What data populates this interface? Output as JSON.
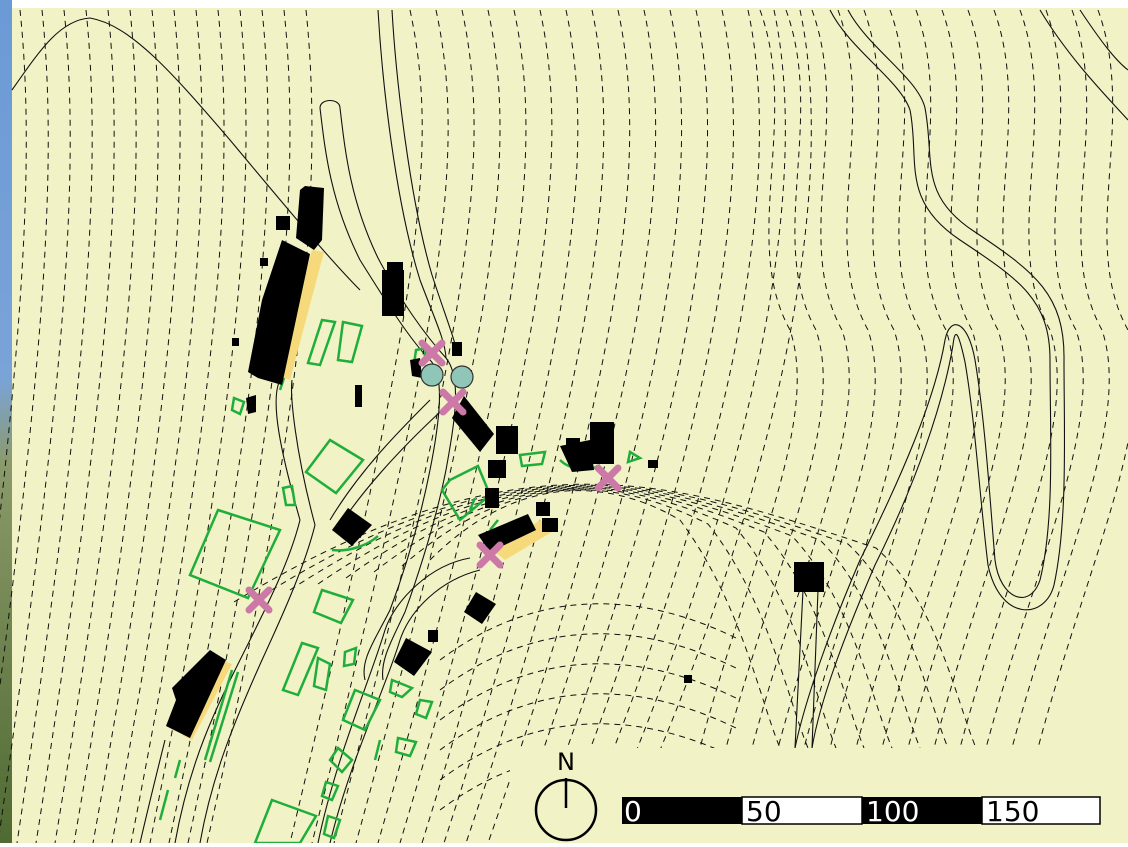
{
  "map": {
    "north_label": "N",
    "scale_labels": [
      "0",
      "50",
      "100",
      "150"
    ],
    "colors": {
      "paper": "#f1f3c6",
      "building": "#000000",
      "vegetation": "#1fae3c",
      "terrace": "#f6d97a",
      "marker_x": "#cc79a7",
      "marker_circle": "#8fc6b8",
      "contour": "#111111",
      "photo_strip_sky": "#6b9ad6",
      "photo_strip_ground": "#6c7a4a"
    },
    "legend_icons": {
      "x_marker": "cross-marker-icon",
      "circle_marker": "circle-marker-icon",
      "north_arrow": "north-arrow-icon"
    }
  }
}
